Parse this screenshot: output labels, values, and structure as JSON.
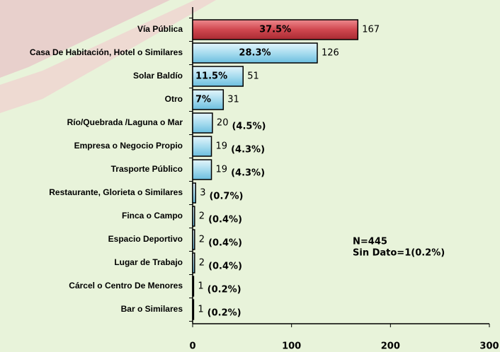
{
  "chart_data": {
    "type": "barh",
    "categories": [
      "Vía Pública",
      "Casa De Habitación, Hotel o Similares",
      "Solar Baldío",
      "Otro",
      "Río/Quebrada /Laguna o Mar",
      "Empresa o Negocio Propio",
      "Trasporte Público",
      "Restaurante, Glorieta o Similares",
      "Finca o Campo",
      "Espacio Deportivo",
      "Lugar de Trabajo",
      "Cárcel o Centro De Menores",
      "Bar o Similares"
    ],
    "values": [
      167,
      126,
      51,
      31,
      20,
      19,
      19,
      3,
      2,
      2,
      2,
      1,
      1
    ],
    "percent_labels": [
      "37.5%",
      "28.3%",
      "11.5%",
      "7%",
      "(4.5%)",
      "(4.3%)",
      "(4.3%)",
      "(0.7%)",
      "(0.4%)",
      "(0.4%)",
      "(0.4%)",
      "(0.2%)",
      "(0.2%)"
    ],
    "colors": [
      "#d0474f",
      "#a8dcef",
      "#a8dcef",
      "#a8dcef",
      "#a8dcef",
      "#a8dcef",
      "#a8dcef",
      "#a8dcef",
      "#a8dcef",
      "#a8dcef",
      "#a8dcef",
      "#a8dcef",
      "#a8dcef"
    ],
    "xlim": [
      0,
      300
    ],
    "xticks": [
      0,
      100,
      200,
      300
    ],
    "annotations": [
      "N=445",
      "Sin Dato=1(0.2%)"
    ]
  }
}
